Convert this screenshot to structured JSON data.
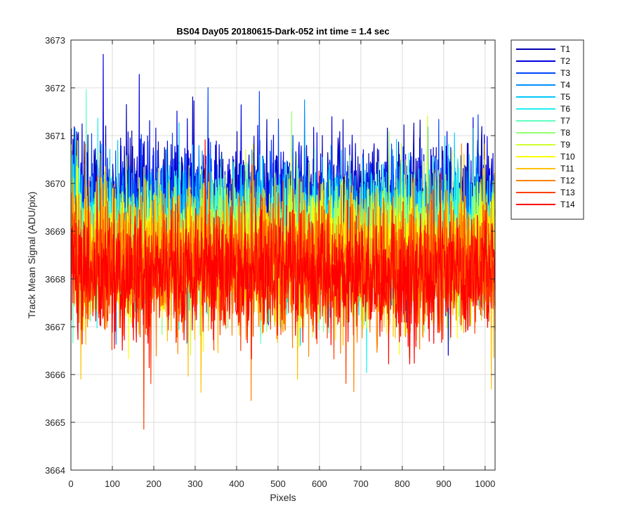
{
  "chart_data": {
    "type": "line",
    "title": "BS04 Day05 20180615-Dark-052 int time = 1.4 sec",
    "xlabel": "Pixels",
    "ylabel": "Track Mean Signal (ADU/pix)",
    "xlim": [
      0,
      1024
    ],
    "ylim": [
      3664,
      3673
    ],
    "xticks": [
      0,
      100,
      200,
      300,
      400,
      500,
      600,
      700,
      800,
      900,
      1000
    ],
    "yticks": [
      3664,
      3665,
      3666,
      3667,
      3668,
      3669,
      3670,
      3671,
      3672,
      3673
    ],
    "grid": true,
    "legend_position": "outside-top-right",
    "x_sampling": "every pixel 1-1024 (synthesized noise)",
    "series": [
      {
        "name": "T1",
        "color": "#0000b0",
        "mean": 3669.6,
        "spread": 0.85
      },
      {
        "name": "T2",
        "color": "#0000e0",
        "mean": 3669.5,
        "spread": 0.85
      },
      {
        "name": "T3",
        "color": "#0044ff",
        "mean": 3669.3,
        "spread": 0.85
      },
      {
        "name": "T4",
        "color": "#0090ff",
        "mean": 3669.1,
        "spread": 0.85
      },
      {
        "name": "T5",
        "color": "#00c8ff",
        "mean": 3669.0,
        "spread": 0.85
      },
      {
        "name": "T6",
        "color": "#20f0f0",
        "mean": 3668.9,
        "spread": 0.85
      },
      {
        "name": "T7",
        "color": "#60ffc0",
        "mean": 3668.8,
        "spread": 0.85
      },
      {
        "name": "T8",
        "color": "#90ff70",
        "mean": 3668.7,
        "spread": 0.85
      },
      {
        "name": "T9",
        "color": "#d0ff30",
        "mean": 3668.6,
        "spread": 0.85
      },
      {
        "name": "T10",
        "color": "#ffff00",
        "mean": 3668.5,
        "spread": 0.85
      },
      {
        "name": "T11",
        "color": "#ffc000",
        "mean": 3668.4,
        "spread": 0.85
      },
      {
        "name": "T12",
        "color": "#ff8000",
        "mean": 3668.3,
        "spread": 0.85
      },
      {
        "name": "T13",
        "color": "#ff4000",
        "mean": 3668.2,
        "spread": 0.85
      },
      {
        "name": "T14",
        "color": "#ff0000",
        "mean": 3668.1,
        "spread": 0.85
      }
    ]
  }
}
